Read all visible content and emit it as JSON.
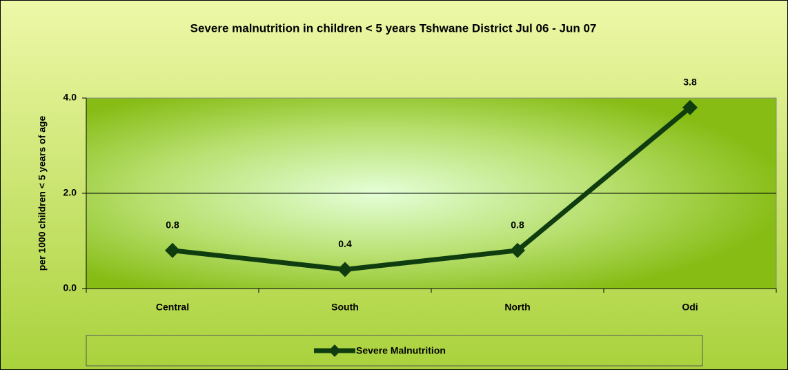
{
  "chart_data": {
    "type": "line",
    "title": "Severe malnutrition  in children < 5 years Tshwane District  Jul 06 - Jun 07",
    "y_label": "per 1000 children < 5 years of age",
    "categories": [
      "Central",
      "South",
      "North",
      "Odi"
    ],
    "series": [
      {
        "name": "Severe Malnutrition",
        "color": "#0f3d0f",
        "values": [
          0.8,
          0.4,
          0.8,
          3.8
        ]
      }
    ],
    "ylim": [
      0,
      4
    ],
    "yticks": [
      {
        "value": 0,
        "label": "0.0"
      },
      {
        "value": 2,
        "label": "2.0"
      },
      {
        "value": 4,
        "label": "4.0"
      }
    ],
    "grid": true,
    "legend": "bottom"
  }
}
